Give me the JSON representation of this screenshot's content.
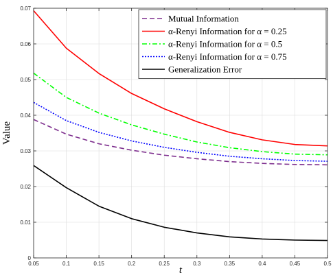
{
  "chart_data": {
    "type": "line",
    "xlabel": "t",
    "ylabel": "Value",
    "xlim": [
      0.05,
      0.5
    ],
    "ylim": [
      0,
      0.07
    ],
    "grid": true,
    "legend_position": "top-right",
    "x": [
      0.05,
      0.1,
      0.15,
      0.2,
      0.25,
      0.3,
      0.35,
      0.4,
      0.45,
      0.5
    ],
    "xticks": [
      "0.05",
      "0.1",
      "0.15",
      "0.2",
      "0.25",
      "0.3",
      "0.35",
      "0.4",
      "0.45",
      "0.5"
    ],
    "yticks": [
      "0",
      "0.01",
      "0.02",
      "0.03",
      "0.04",
      "0.05",
      "0.06",
      "0.07"
    ],
    "series": [
      {
        "name": "Mutual Information",
        "color": "#7E2F8E",
        "dash": "dashed",
        "values": [
          0.0388,
          0.0347,
          0.032,
          0.0302,
          0.0288,
          0.0278,
          0.027,
          0.0265,
          0.0262,
          0.0261
        ]
      },
      {
        "name": "α-Renyi Information for α = 0.25",
        "color": "#FF0000",
        "dash": "solid",
        "values": [
          0.0693,
          0.0588,
          0.0517,
          0.0461,
          0.0418,
          0.0382,
          0.0352,
          0.0331,
          0.0318,
          0.0314
        ]
      },
      {
        "name": "α-Renyi Information for α = 0.5",
        "color": "#00FF00",
        "dash": "dashdot",
        "values": [
          0.0518,
          0.045,
          0.0406,
          0.0373,
          0.0347,
          0.0325,
          0.0309,
          0.0298,
          0.0291,
          0.0289
        ]
      },
      {
        "name": "α-Renyi Information for α = 0.75",
        "color": "#0000FF",
        "dash": "dotted",
        "values": [
          0.0436,
          0.0385,
          0.0352,
          0.0328,
          0.031,
          0.0296,
          0.0285,
          0.0278,
          0.0273,
          0.0271
        ]
      },
      {
        "name": "Generalization Error",
        "color": "#000000",
        "dash": "solid",
        "values": [
          0.0259,
          0.0197,
          0.0145,
          0.011,
          0.0086,
          0.007,
          0.0059,
          0.0053,
          0.005,
          0.0049
        ]
      }
    ]
  }
}
